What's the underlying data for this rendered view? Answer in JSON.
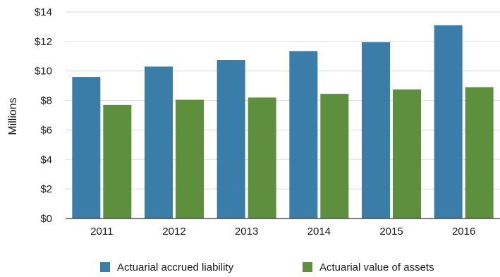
{
  "chart_data": {
    "type": "bar",
    "categories": [
      "2011",
      "2012",
      "2013",
      "2014",
      "2015",
      "2016"
    ],
    "series": [
      {
        "name": "Actuarial accrued liability",
        "color": "#3a7da8",
        "values": [
          9.6,
          10.3,
          10.75,
          11.35,
          11.95,
          13.1
        ]
      },
      {
        "name": "Actuarial value of assets",
        "color": "#5e8f3c",
        "values": [
          7.7,
          8.05,
          8.2,
          8.45,
          8.75,
          8.9
        ]
      }
    ],
    "ylabel": "Millions",
    "ylim": [
      0,
      14
    ],
    "yticks": [
      0,
      2,
      4,
      6,
      8,
      10,
      12,
      14
    ],
    "ytick_labels": [
      "$0",
      "$2",
      "$4",
      "$6",
      "$8",
      "$10",
      "$12",
      "$14"
    ],
    "grid": true,
    "legend_position": "bottom"
  }
}
